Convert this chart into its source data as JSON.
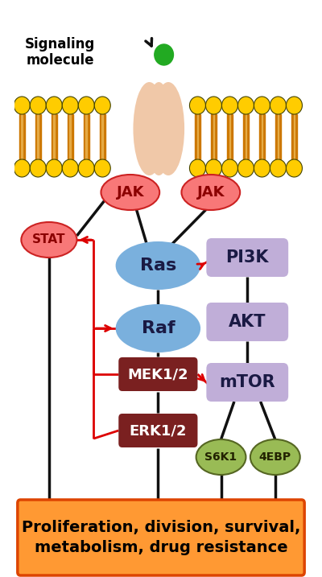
{
  "bg_color": "#ffffff",
  "membrane_color": "#cc7700",
  "membrane_head_color": "#ffcc00",
  "receptor_color": "#f0c8a8",
  "ligand_color": "#22aa22",
  "jak_color": "#f87878",
  "jak_border": "#cc2222",
  "stat_color": "#f87878",
  "stat_border": "#cc2222",
  "ras_color": "#7ab0dd",
  "raf_color": "#7ab0dd",
  "pi3k_color": "#c0aed8",
  "akt_color": "#c0aed8",
  "mtor_color": "#c0aed8",
  "mek_color": "#7a2020",
  "erk_color": "#7a2020",
  "s6k1_color": "#99bb55",
  "s6k1_border": "#556622",
  "fourebp_color": "#99bb55",
  "fourebp_border": "#556622",
  "bottom_fill": "#ff9933",
  "bottom_border": "#dd4400",
  "bottom_text_line1": "Proliferation, division, survival,",
  "bottom_text_line2": "metabolism, drug resistance",
  "signaling_text_line1": "Signaling",
  "signaling_text_line2": "molecule",
  "red": "#dd0000",
  "black": "#111111"
}
